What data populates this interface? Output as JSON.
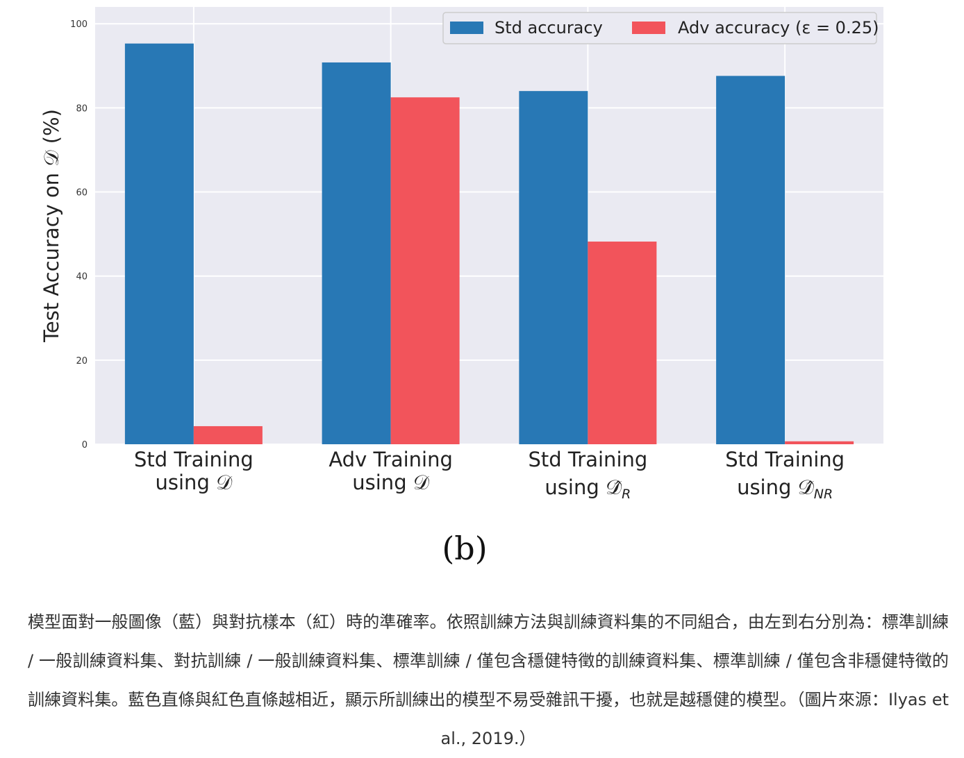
{
  "chart_data": {
    "type": "bar",
    "title": "",
    "xlabel": "",
    "ylabel": "Test Accuracy on 𝒟 (%)",
    "ylim": [
      0,
      104
    ],
    "yticks": [
      "0",
      "20",
      "40",
      "60",
      "80",
      "100"
    ],
    "grid": true,
    "legend_position": "top-right",
    "categories": [
      {
        "line1": "Std Training",
        "line2": "using 𝒟",
        "sub": ""
      },
      {
        "line1": "Adv Training",
        "line2": "using 𝒟",
        "sub": ""
      },
      {
        "line1": "Std Training",
        "line2": "using 𝒟̂",
        "sub": "R"
      },
      {
        "line1": "Std Training",
        "line2": "using 𝒟̂",
        "sub": "NR"
      }
    ],
    "series": [
      {
        "name": "Std accuracy",
        "color": "#2878b5",
        "values": [
          95.3,
          90.8,
          84.0,
          87.6
        ]
      },
      {
        "name": "Adv accuracy (ε = 0.25)",
        "color": "#f2545b",
        "values": [
          4.3,
          82.5,
          48.2,
          0.7
        ]
      }
    ]
  },
  "panel_label": "(b)",
  "caption": "模型面對一般圖像（藍）與對抗樣本（紅）時的準確率。依照訓練方法與訓練資料集的不同組合，由左到右分別為：標準訓練 / 一般訓練資料集、對抗訓練 / 一般訓練資料集、標準訓練 / 僅包含穩健特徵的訓練資料集、標準訓練 / 僅包含非穩健特徵的訓練資料集。藍色直條與紅色直條越相近，顯示所訓練出的模型不易受雜訊干擾，也就是越穩健的模型。（圖片來源：Ilyas et al., 2019.）"
}
